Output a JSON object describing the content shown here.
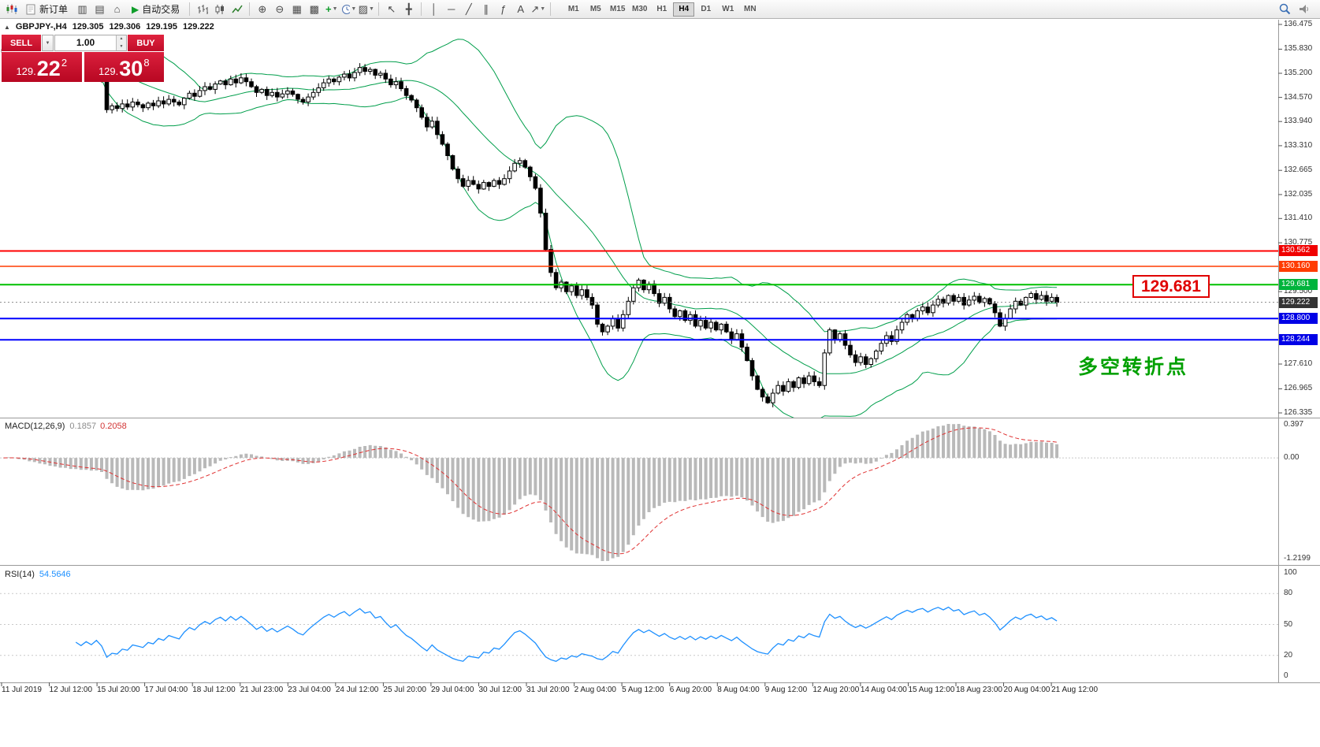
{
  "toolbar": {
    "new_order": "新订单",
    "autotrade": "自动交易",
    "timeframes": [
      "M1",
      "M5",
      "M15",
      "M30",
      "H1",
      "H4",
      "D1",
      "W1",
      "MN"
    ],
    "active_timeframe": "H4"
  },
  "icons": {
    "collapse": "▲",
    "dropdown": "▼",
    "spin_up": "▲",
    "spin_down": "▼",
    "play": "▶",
    "market_watch": "▥",
    "data_window": "▤",
    "navigator": "⌂",
    "refresh": "↻",
    "zoom_in": "⊕",
    "zoom_out": "⊖",
    "tile": "▦",
    "cascade": "▩",
    "plus": "+",
    "templates": "▨",
    "cursor": "↖",
    "crosshair": "╋",
    "vline": "│",
    "hline": "─",
    "trendline": "╱",
    "channel": "∥",
    "fibonacci": "ƒ",
    "text": "A",
    "arrows": "↗"
  },
  "trade_panel": {
    "sell_label": "SELL",
    "buy_label": "BUY",
    "volume": "1.00",
    "sell_price": {
      "int": "129.",
      "main": "22",
      "sup": "2"
    },
    "buy_price": {
      "int": "129.",
      "main": "30",
      "sup": "8"
    }
  },
  "chart_info": {
    "symbol": "GBPJPY-,H4",
    "open": "129.305",
    "high": "129.306",
    "low": "129.195",
    "close": "129.222"
  },
  "annotations": {
    "level_label": "129.681",
    "cn_note": "多空转折点"
  },
  "price_scale": {
    "plain": [
      "136.475",
      "135.830",
      "135.200",
      "134.570",
      "133.940",
      "133.310",
      "132.665",
      "132.035",
      "131.410",
      "130.775",
      "129.500",
      "127.610",
      "126.965",
      "126.335"
    ],
    "boxed": [
      {
        "text": "130.562",
        "price": 130.562,
        "type": "red1"
      },
      {
        "text": "130.160",
        "price": 130.16,
        "type": "red2"
      },
      {
        "text": "129.681",
        "price": 129.681,
        "type": "green"
      },
      {
        "text": "129.222",
        "price": 129.222,
        "type": "cur"
      },
      {
        "text": "128.800",
        "price": 128.8,
        "type": "blue"
      },
      {
        "text": "128.244",
        "price": 128.244,
        "type": "blue"
      }
    ]
  },
  "indicators": {
    "macd": {
      "label": "MACD(12,26,9)",
      "value1": "0.1857",
      "value2": "0.2058",
      "scale_top": "0.397",
      "scale_zero": "0.00",
      "scale_bottom": "-1.2199"
    },
    "rsi": {
      "label": "RSI(14)",
      "value": "54.5646",
      "scale": [
        "100",
        "80",
        "50",
        "20",
        "0"
      ]
    }
  },
  "time_axis": [
    "11 Jul 2019",
    "12 Jul 12:00",
    "15 Jul 20:00",
    "17 Jul 04:00",
    "18 Jul 12:00",
    "21 Jul 23:00",
    "23 Jul 04:00",
    "24 Jul 12:00",
    "25 Jul 20:00",
    "29 Jul 04:00",
    "30 Jul 12:00",
    "31 Jul 20:00",
    "2 Aug 04:00",
    "5 Aug 12:00",
    "6 Aug 20:00",
    "8 Aug 04:00",
    "9 Aug 12:00",
    "12 Aug 20:00",
    "14 Aug 04:00",
    "15 Aug 12:00",
    "18 Aug 23:00",
    "20 Aug 04:00",
    "21 Aug 12:00"
  ],
  "colors": {
    "trade_red": "#c8102e",
    "bollinger_green": "#009e4b",
    "rsi_blue": "#1e90ff",
    "macd_histogram": "#b9b9b9",
    "macd_signal": "#e03232",
    "level_red": "#ff0000",
    "level_orange_red": "#ff3c00",
    "level_green": "#00c000",
    "level_blue": "#0000ff"
  },
  "chart_data": {
    "type": "candlestick",
    "symbol": "GBPJPY- H4",
    "y_range": [
      126.335,
      136.475
    ],
    "current_price": 129.222,
    "levels": [
      {
        "price": 130.562,
        "color": "#ff0000",
        "width": 2
      },
      {
        "price": 130.16,
        "color": "#ff3c00",
        "width": 1.5
      },
      {
        "price": 129.681,
        "color": "#00c000",
        "width": 2
      },
      {
        "price": 128.8,
        "color": "#0000ff",
        "width": 2
      },
      {
        "price": 128.244,
        "color": "#0000ff",
        "width": 2
      }
    ],
    "bollinger": {
      "period": 20,
      "deviation": 2
    },
    "macd": {
      "fast": 12,
      "slow": 26,
      "signal": 9,
      "range": [
        -1.2199,
        0.397
      ]
    },
    "rsi": {
      "period": 14,
      "levels": [
        80,
        50,
        20
      ]
    },
    "closes": [
      135.82,
      135.9,
      135.78,
      135.65,
      135.7,
      135.55,
      135.6,
      135.48,
      135.52,
      135.4,
      135.45,
      135.35,
      135.42,
      135.3,
      135.38,
      135.25,
      135.32,
      135.2,
      135.28,
      135.05,
      134.25,
      134.35,
      134.28,
      134.4,
      134.32,
      134.45,
      134.38,
      134.3,
      134.42,
      134.35,
      134.48,
      134.4,
      134.52,
      134.45,
      134.38,
      134.55,
      134.68,
      134.6,
      134.75,
      134.85,
      134.78,
      134.92,
      135.0,
      134.9,
      135.05,
      134.95,
      135.08,
      134.98,
      134.85,
      134.7,
      134.78,
      134.62,
      134.7,
      134.58,
      134.66,
      134.74,
      134.65,
      134.52,
      134.45,
      134.58,
      134.7,
      134.82,
      134.95,
      135.05,
      134.98,
      135.1,
      135.18,
      135.08,
      135.22,
      135.35,
      135.25,
      135.3,
      135.15,
      135.2,
      135.05,
      134.9,
      134.98,
      134.8,
      134.62,
      134.5,
      134.3,
      134.05,
      133.8,
      133.95,
      133.6,
      133.35,
      133.05,
      132.7,
      132.45,
      132.25,
      132.4,
      132.3,
      132.18,
      132.35,
      132.25,
      132.4,
      132.3,
      132.45,
      132.65,
      132.85,
      132.92,
      132.75,
      132.5,
      132.2,
      131.55,
      130.6,
      130.0,
      129.6,
      129.75,
      129.5,
      129.65,
      129.4,
      129.55,
      129.35,
      129.15,
      128.65,
      128.45,
      128.6,
      128.8,
      128.55,
      128.9,
      129.25,
      129.6,
      129.8,
      129.55,
      129.7,
      129.45,
      129.2,
      129.35,
      129.05,
      128.85,
      129.0,
      128.75,
      128.9,
      128.6,
      128.75,
      128.55,
      128.7,
      128.5,
      128.65,
      128.45,
      128.25,
      128.4,
      128.05,
      127.7,
      127.3,
      126.95,
      126.75,
      126.6,
      126.85,
      127.05,
      126.9,
      127.15,
      127.0,
      127.25,
      127.1,
      127.3,
      127.15,
      127.05,
      127.9,
      128.5,
      128.25,
      128.4,
      128.1,
      127.85,
      127.65,
      127.8,
      127.6,
      127.75,
      127.95,
      128.15,
      128.35,
      128.2,
      128.5,
      128.7,
      128.9,
      128.8,
      129.0,
      129.1,
      128.95,
      129.15,
      129.3,
      129.2,
      129.4,
      129.25,
      129.35,
      129.15,
      129.28,
      129.38,
      129.22,
      129.32,
      129.18,
      128.95,
      128.6,
      128.8,
      129.05,
      129.25,
      129.15,
      129.35,
      129.45,
      129.3,
      129.4,
      129.25,
      129.35,
      129.222
    ]
  }
}
